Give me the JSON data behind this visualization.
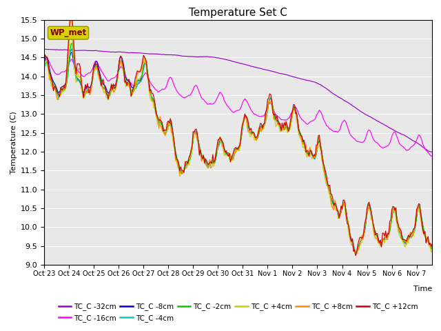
{
  "title": "Temperature Set C",
  "xlabel": "Time",
  "ylabel": "Temperature (C)",
  "ylim": [
    9.0,
    15.5
  ],
  "xlim": [
    0,
    375
  ],
  "x_tick_labels": [
    "Oct 23",
    "Oct 24",
    "Oct 25",
    "Oct 26",
    "Oct 27",
    "Oct 28",
    "Oct 29",
    "Oct 30",
    "Oct 31",
    "Nov 1",
    "Nov 2",
    "Nov 3",
    "Nov 4",
    "Nov 5",
    "Nov 6",
    "Nov 7"
  ],
  "x_tick_positions": [
    0,
    24,
    48,
    72,
    96,
    120,
    144,
    168,
    192,
    216,
    240,
    264,
    288,
    312,
    336,
    360
  ],
  "wp_met_box_color": "#d4d400",
  "wp_met_text_color": "#800000",
  "background_color": "#e8e8e8",
  "series_colors": {
    "TC_C -32cm": "#9900cc",
    "TC_C -16cm": "#ff00ff",
    "TC_C -8cm": "#0000cc",
    "TC_C -4cm": "#00cccc",
    "TC_C -2cm": "#00cc00",
    "TC_C +4cm": "#cccc00",
    "TC_C +8cm": "#ff8800",
    "TC_C +12cm": "#cc0000"
  },
  "legend_order": [
    "TC_C -32cm",
    "TC_C -16cm",
    "TC_C -8cm",
    "TC_C -4cm",
    "TC_C -2cm",
    "TC_C +4cm",
    "TC_C +8cm",
    "TC_C +12cm"
  ]
}
